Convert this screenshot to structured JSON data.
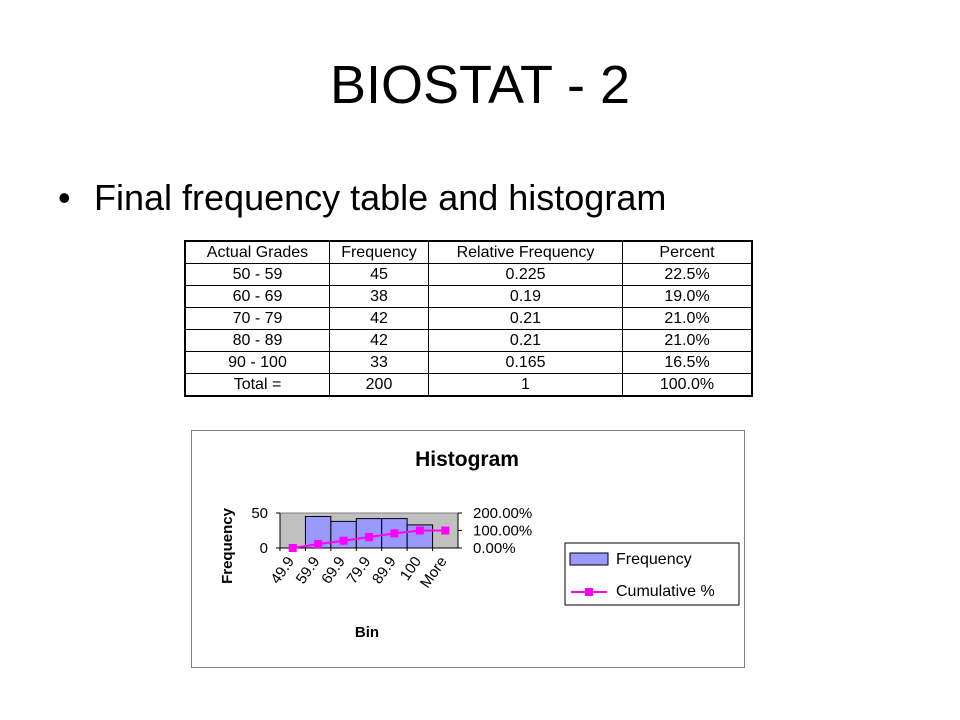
{
  "slide": {
    "title": "BIOSTAT - 2",
    "bullet": "Final frequency table and histogram"
  },
  "table": {
    "headers": [
      "Actual Grades",
      "Frequency",
      "Relative Frequency",
      "Percent"
    ],
    "rows": [
      [
        "50 - 59",
        "45",
        "0.225",
        "22.5%"
      ],
      [
        "60 - 69",
        "38",
        "0.19",
        "19.0%"
      ],
      [
        "70 - 79",
        "42",
        "0.21",
        "21.0%"
      ],
      [
        "80 - 89",
        "42",
        "0.21",
        "21.0%"
      ],
      [
        "90 - 100",
        "33",
        "0.165",
        "16.5%"
      ],
      [
        "Total =",
        "200",
        "1",
        "100.0%"
      ]
    ]
  },
  "chart_data": {
    "type": "bar",
    "title": "Histogram",
    "xlabel": "Bin",
    "ylabel": "Frequency",
    "categories": [
      "49.9",
      "59.9",
      "69.9",
      "79.9",
      "89.9",
      "100",
      "More"
    ],
    "series": [
      {
        "name": "Frequency",
        "type": "bar",
        "axis": "left",
        "values": [
          0,
          45,
          38,
          42,
          42,
          33,
          0
        ],
        "color": "#9999ff"
      },
      {
        "name": "Cumulative %",
        "type": "line",
        "axis": "right",
        "values": [
          0,
          22.5,
          41.5,
          62.5,
          83.5,
          100,
          100
        ],
        "color": "#ff00ff"
      }
    ],
    "ylim": [
      0,
      50
    ],
    "y2lim": [
      0,
      200
    ],
    "yticks": [
      "0",
      "50"
    ],
    "y2ticks": [
      "0.00%",
      "100.00%",
      "200.00%"
    ],
    "plot_background": "#c0c0c0",
    "legend": "right"
  }
}
